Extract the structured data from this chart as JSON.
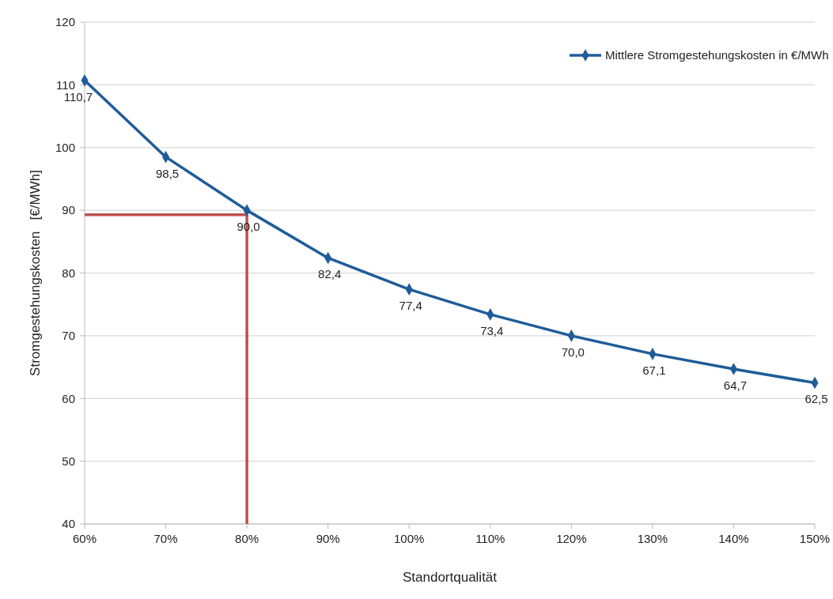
{
  "chart_data": {
    "type": "line",
    "xlabel": "Standortqualität",
    "ylabel": "Stromgestehungskosten   [€/MWh]",
    "x": [
      60,
      70,
      80,
      90,
      100,
      110,
      120,
      130,
      140,
      150
    ],
    "xlim": [
      60,
      150
    ],
    "xticks": [
      {
        "value": 60,
        "label": "60%"
      },
      {
        "value": 70,
        "label": "70%"
      },
      {
        "value": 80,
        "label": "80%"
      },
      {
        "value": 90,
        "label": "90%"
      },
      {
        "value": 100,
        "label": "100%"
      },
      {
        "value": 110,
        "label": "110%"
      },
      {
        "value": 120,
        "label": "120%"
      },
      {
        "value": 130,
        "label": "130%"
      },
      {
        "value": 140,
        "label": "140%"
      },
      {
        "value": 150,
        "label": "150%"
      }
    ],
    "ylim": [
      40,
      120
    ],
    "yticks": [
      40,
      50,
      60,
      70,
      80,
      90,
      100,
      110,
      120
    ],
    "grid": "y",
    "legend": "top right",
    "series": [
      {
        "name": "Mittlere Stromgestehungskosten in €/MWh",
        "color": "#1f5c99",
        "marker": "diamond",
        "values": [
          110.7,
          98.5,
          90.0,
          82.4,
          77.4,
          73.4,
          70.0,
          67.1,
          64.7,
          62.5
        ],
        "value_labels": [
          "110,7",
          "98,5",
          "90,0",
          "82,4",
          "77,4",
          "73,4",
          "70,0",
          "67,1",
          "64,7",
          "62,5"
        ]
      }
    ],
    "ref_lines": [
      {
        "axis": "x",
        "value": 80,
        "color": "#c0504d"
      },
      {
        "axis": "y",
        "value": 89.3,
        "color": "#c0504d"
      }
    ]
  }
}
